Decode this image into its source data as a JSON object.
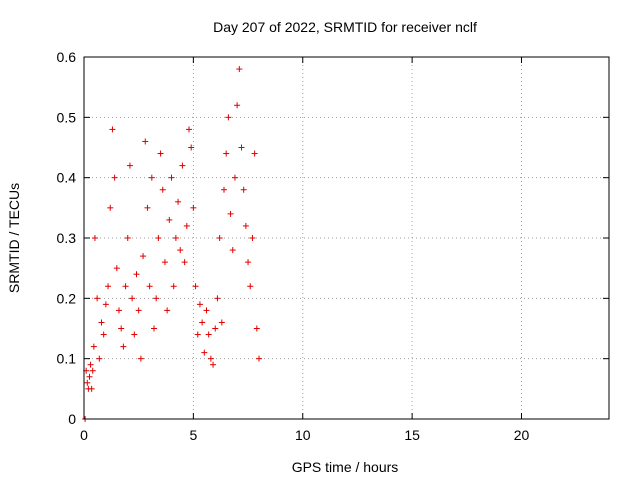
{
  "chart_data": {
    "type": "scatter",
    "title": "Day 207 of 2022, SRMTID for receiver nclf",
    "xlabel": "GPS time / hours",
    "ylabel": "SRMTID / TECUs",
    "xlim": [
      0,
      24
    ],
    "ylim": [
      0,
      0.6
    ],
    "x_ticks": [
      "0",
      "5",
      "10",
      "15",
      "20"
    ],
    "y_ticks": [
      "0",
      "0.1",
      "0.2",
      "0.3",
      "0.4",
      "0.5",
      "0.6"
    ],
    "grid": true,
    "marker": "+",
    "series_color": "#e00000",
    "series": [
      {
        "name": "SRMTID",
        "x": [
          0.05,
          0.1,
          0.15,
          0.2,
          0.25,
          0.3,
          0.35,
          0.4,
          0.45,
          0.5,
          0.6,
          0.7,
          0.8,
          0.9,
          1.0,
          1.1,
          1.2,
          1.3,
          1.4,
          1.5,
          1.6,
          1.7,
          1.8,
          1.9,
          2.0,
          2.1,
          2.2,
          2.3,
          2.4,
          2.5,
          2.6,
          2.7,
          2.8,
          2.9,
          3.0,
          3.1,
          3.2,
          3.3,
          3.4,
          3.5,
          3.6,
          3.7,
          3.8,
          3.9,
          4.0,
          4.1,
          4.2,
          4.3,
          4.4,
          4.5,
          4.6,
          4.7,
          4.8,
          4.9,
          5.0,
          5.1,
          5.2,
          5.3,
          5.4,
          5.5,
          5.6,
          5.7,
          5.8,
          5.9,
          6.0,
          6.1,
          6.2,
          6.3,
          6.4,
          6.5,
          6.6,
          6.7,
          6.8,
          6.9,
          7.0,
          7.1,
          7.2,
          7.3,
          7.4,
          7.5,
          7.6,
          7.7,
          7.8,
          7.9,
          8.0
        ],
        "y": [
          0.0,
          0.08,
          0.06,
          0.05,
          0.07,
          0.09,
          0.05,
          0.08,
          0.12,
          0.3,
          0.2,
          0.1,
          0.16,
          0.14,
          0.19,
          0.22,
          0.35,
          0.48,
          0.4,
          0.25,
          0.18,
          0.15,
          0.12,
          0.22,
          0.3,
          0.42,
          0.2,
          0.14,
          0.24,
          0.18,
          0.1,
          0.27,
          0.46,
          0.35,
          0.22,
          0.4,
          0.15,
          0.2,
          0.3,
          0.44,
          0.38,
          0.26,
          0.18,
          0.33,
          0.4,
          0.22,
          0.3,
          0.36,
          0.28,
          0.42,
          0.26,
          0.32,
          0.48,
          0.45,
          0.35,
          0.22,
          0.14,
          0.19,
          0.16,
          0.11,
          0.18,
          0.14,
          0.1,
          0.09,
          0.15,
          0.2,
          0.3,
          0.16,
          0.38,
          0.44,
          0.5,
          0.34,
          0.28,
          0.4,
          0.52,
          0.58,
          0.45,
          0.38,
          0.32,
          0.26,
          0.22,
          0.3,
          0.44,
          0.15,
          0.1
        ]
      }
    ]
  }
}
